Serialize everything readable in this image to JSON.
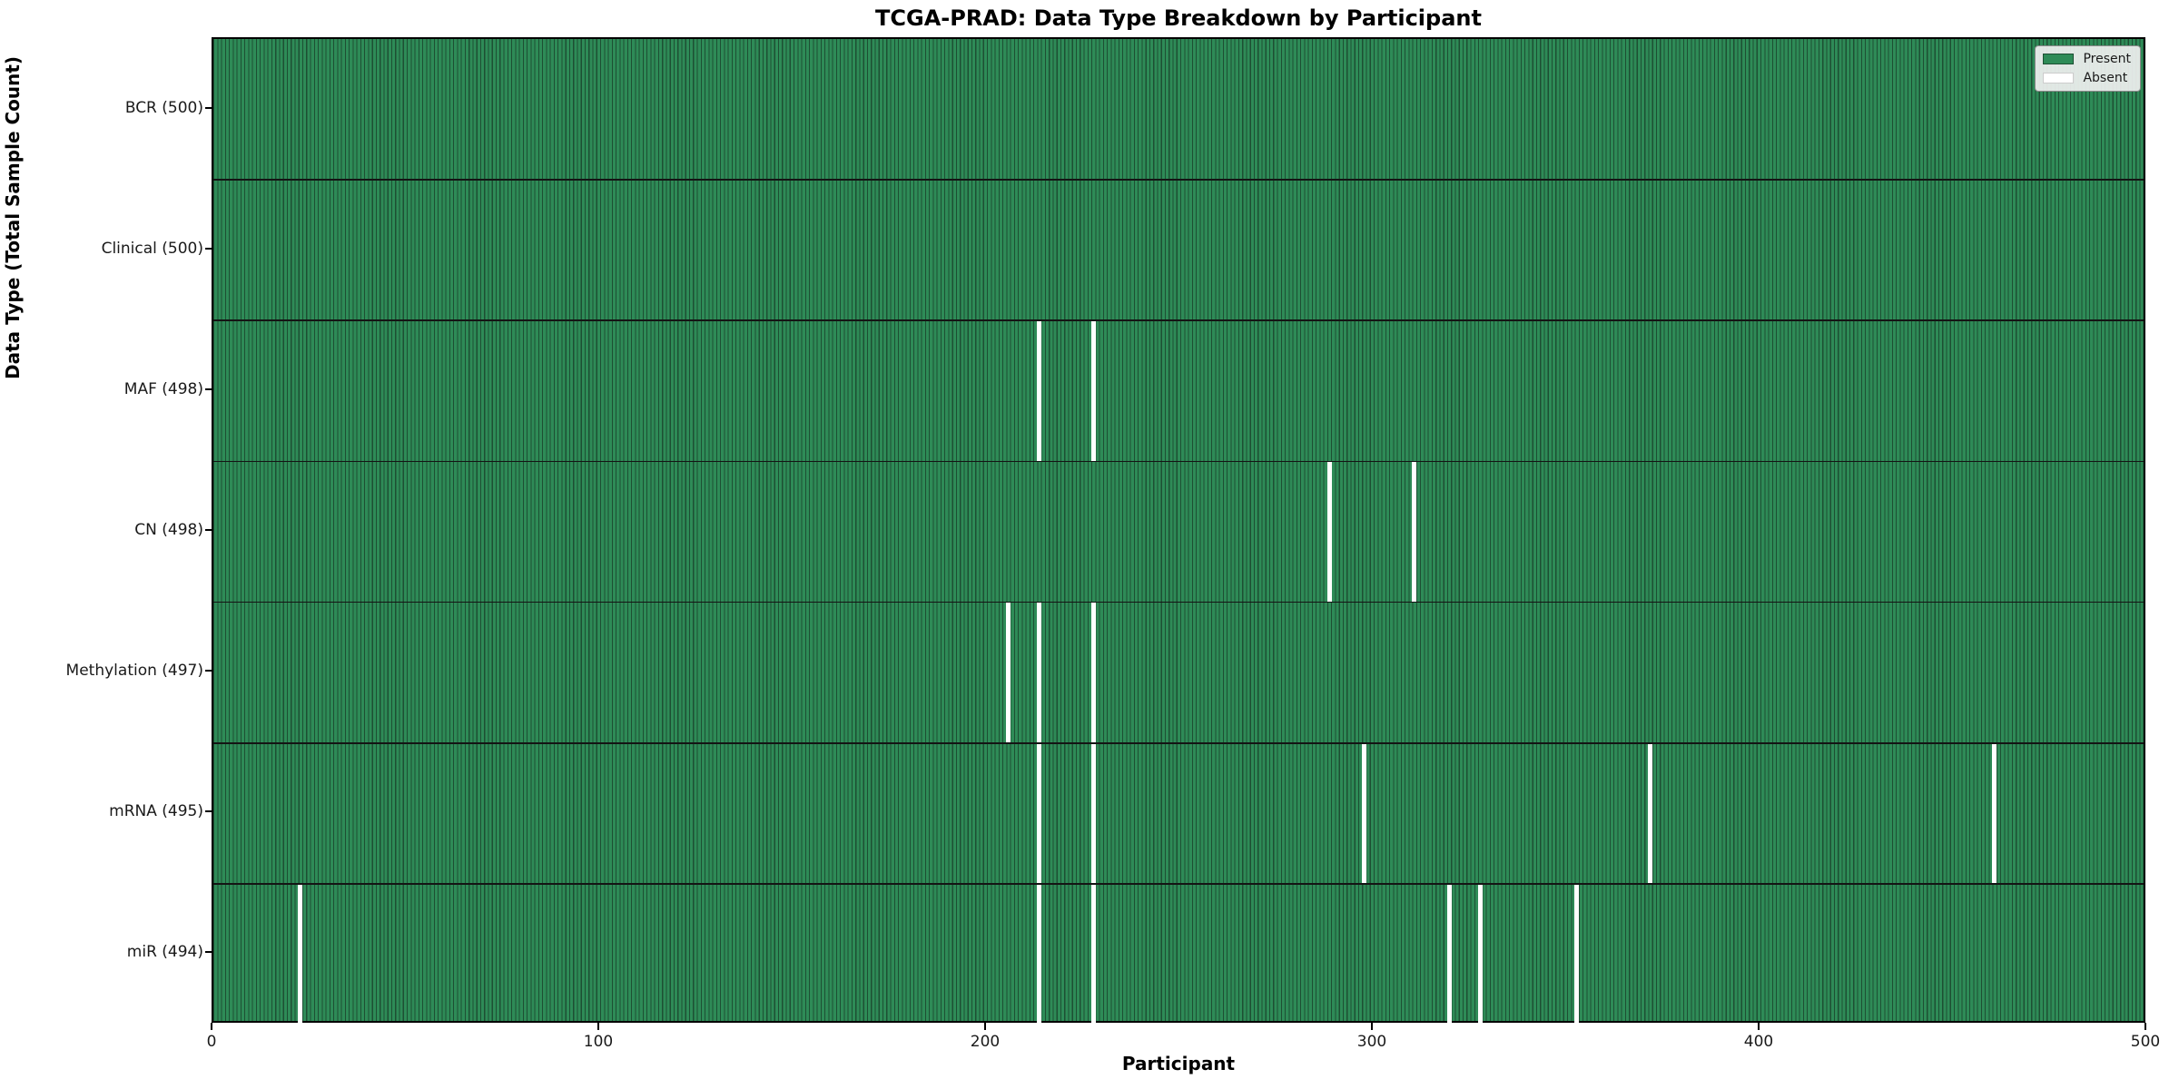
{
  "figure": {
    "title": "TCGA-PRAD: Data Type Breakdown by Participant",
    "xlabel": "Participant",
    "ylabel": "Data Type (Total Sample Count)"
  },
  "chart_data": {
    "type": "heatmap",
    "title": "TCGA-PRAD: Data Type Breakdown by Participant",
    "xlabel": "Participant",
    "ylabel": "Data Type (Total Sample Count)",
    "x_range": [
      0,
      500
    ],
    "x_ticks": [
      0,
      100,
      200,
      300,
      400,
      500
    ],
    "n_participants": 500,
    "grid": false,
    "legend_position": "upper right",
    "legend": [
      {
        "label": "Present",
        "color": "#2e8b57"
      },
      {
        "label": "Absent",
        "color": "#ffffff"
      }
    ],
    "rows": [
      {
        "label": "BCR (500)",
        "data_type": "BCR",
        "total": 500,
        "absent_participants": []
      },
      {
        "label": "Clinical (500)",
        "data_type": "Clinical",
        "total": 500,
        "absent_participants": []
      },
      {
        "label": "MAF (498)",
        "data_type": "MAF",
        "total": 498,
        "absent_participants": [
          213,
          227
        ]
      },
      {
        "label": "CN (498)",
        "data_type": "CN",
        "total": 498,
        "absent_participants": [
          288,
          310
        ]
      },
      {
        "label": "Methylation (497)",
        "data_type": "Methylation",
        "total": 497,
        "absent_participants": [
          205,
          213,
          227
        ]
      },
      {
        "label": "mRNA (495)",
        "data_type": "mRNA",
        "total": 495,
        "absent_participants": [
          213,
          227,
          297,
          371,
          460
        ]
      },
      {
        "label": "miR (494)",
        "data_type": "miR",
        "total": 494,
        "absent_participants": [
          22,
          213,
          227,
          319,
          327,
          352
        ]
      }
    ],
    "colors": {
      "present": "#2e8b57",
      "absent": "#ffffff",
      "bar_edge": "#1d4f33",
      "row_separator": "#141414",
      "plot_border": "#000000",
      "legend_background": "#f0f0f0"
    }
  }
}
